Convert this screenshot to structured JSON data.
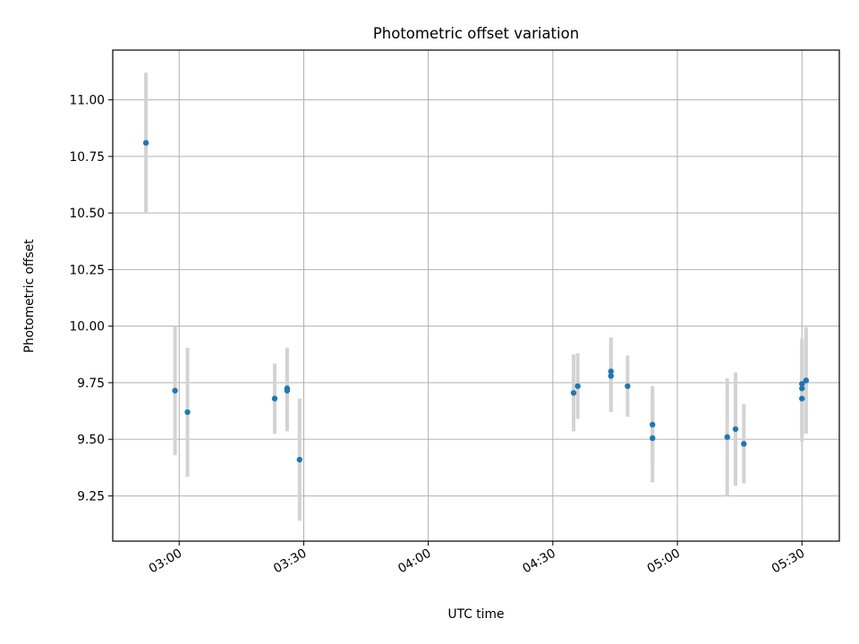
{
  "chart_data": {
    "type": "scatter",
    "title": "Photometric offset variation",
    "xlabel": "UTC time",
    "ylabel": "Photometric offset",
    "x_axis_kind": "time",
    "x_ticks": [
      "03:00",
      "03:30",
      "04:00",
      "04:30",
      "05:00",
      "05:30"
    ],
    "x_range": [
      "02:44",
      "05:39"
    ],
    "y_ticks": [
      9.25,
      9.5,
      9.75,
      10.0,
      10.25,
      10.5,
      10.75,
      11.0
    ],
    "y_tick_labels": [
      "9.25",
      "9.50",
      "9.75",
      "10.00",
      "10.25",
      "10.50",
      "10.75",
      "11.00"
    ],
    "ylim": [
      9.05,
      11.22
    ],
    "grid": true,
    "marker_color": "#1f77b4",
    "errorbar_color": "#d3d3d3",
    "points": [
      {
        "time": "02:52",
        "y": 10.81,
        "yerr": 0.31
      },
      {
        "time": "02:59",
        "y": 9.715,
        "yerr": 0.285
      },
      {
        "time": "03:02",
        "y": 9.62,
        "yerr": 0.285
      },
      {
        "time": "03:23",
        "y": 9.68,
        "yerr": 0.155
      },
      {
        "time": "03:26",
        "y": 9.725,
        "yerr": 0.18
      },
      {
        "time": "03:26",
        "y": 9.715,
        "yerr": 0.18
      },
      {
        "time": "03:29",
        "y": 9.41,
        "yerr": 0.27
      },
      {
        "time": "04:35",
        "y": 9.705,
        "yerr": 0.17
      },
      {
        "time": "04:36",
        "y": 9.735,
        "yerr": 0.145
      },
      {
        "time": "04:44",
        "y": 9.8,
        "yerr": 0.15
      },
      {
        "time": "04:44",
        "y": 9.78,
        "yerr": 0.16
      },
      {
        "time": "04:48",
        "y": 9.735,
        "yerr": 0.135
      },
      {
        "time": "04:54",
        "y": 9.565,
        "yerr": 0.17
      },
      {
        "time": "04:54",
        "y": 9.505,
        "yerr": 0.195
      },
      {
        "time": "05:12",
        "y": 9.51,
        "yerr": 0.26
      },
      {
        "time": "05:14",
        "y": 9.545,
        "yerr": 0.25
      },
      {
        "time": "05:16",
        "y": 9.48,
        "yerr": 0.175
      },
      {
        "time": "05:30",
        "y": 9.68,
        "yerr": 0.19
      },
      {
        "time": "05:30",
        "y": 9.725,
        "yerr": 0.21
      },
      {
        "time": "05:30",
        "y": 9.745,
        "yerr": 0.2
      },
      {
        "time": "05:31",
        "y": 9.76,
        "yerr": 0.235
      }
    ]
  }
}
